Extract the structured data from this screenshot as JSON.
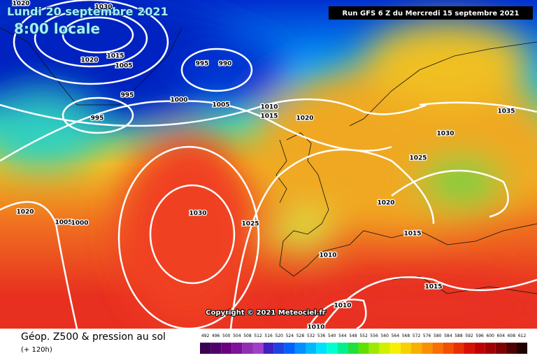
{
  "header": {
    "date": "Lundi 20 septembre 2021",
    "time": "8:00 locale",
    "run": "Run GFS 6 Z du Mercredi 15 septembre 2021",
    "copyright": "Copyright © 2021 Meteociel.fr"
  },
  "footer": {
    "title": "Géop. Z500 & pression au sol",
    "lead": "(+ 120h)"
  },
  "isobar_labels": [
    "1020",
    "1030",
    "1020",
    "1015",
    "1005",
    "995",
    "995",
    "990",
    "1000",
    "1005",
    "1010",
    "1015",
    "1020",
    "1035",
    "1030",
    "1025",
    "995",
    "1020",
    "1005",
    "1000",
    "1030",
    "1025",
    "1020",
    "1015",
    "1010",
    "1015",
    "1010",
    "1010"
  ],
  "legend": {
    "items": [
      {
        "value": 492,
        "color": "#3a0050"
      },
      {
        "value": 496,
        "color": "#50006a"
      },
      {
        "value": 500,
        "color": "#6a0080"
      },
      {
        "value": 504,
        "color": "#80109a"
      },
      {
        "value": 508,
        "color": "#9030b0"
      },
      {
        "value": 512,
        "color": "#a040c8"
      },
      {
        "value": 516,
        "color": "#4020c0"
      },
      {
        "value": 520,
        "color": "#2040e0"
      },
      {
        "value": 524,
        "color": "#0060ff"
      },
      {
        "value": 528,
        "color": "#0090ff"
      },
      {
        "value": 532,
        "color": "#00b8ff"
      },
      {
        "value": 536,
        "color": "#00e0ff"
      },
      {
        "value": 540,
        "color": "#00ffd0"
      },
      {
        "value": 544,
        "color": "#00f090"
      },
      {
        "value": 548,
        "color": "#20e040"
      },
      {
        "value": 552,
        "color": "#60e000"
      },
      {
        "value": 556,
        "color": "#a0e800"
      },
      {
        "value": 560,
        "color": "#d0f000"
      },
      {
        "value": 564,
        "color": "#f8f000"
      },
      {
        "value": 568,
        "color": "#f8d000"
      },
      {
        "value": 572,
        "color": "#f8b000"
      },
      {
        "value": 576,
        "color": "#f89000"
      },
      {
        "value": 580,
        "color": "#f87000"
      },
      {
        "value": 584,
        "color": "#f05000"
      },
      {
        "value": 588,
        "color": "#e83000"
      },
      {
        "value": 592,
        "color": "#d81000"
      },
      {
        "value": 596,
        "color": "#c00000"
      },
      {
        "value": 600,
        "color": "#a00000"
      },
      {
        "value": 604,
        "color": "#800000"
      },
      {
        "value": 608,
        "color": "#500000"
      },
      {
        "value": 612,
        "color": "#200000"
      }
    ]
  }
}
